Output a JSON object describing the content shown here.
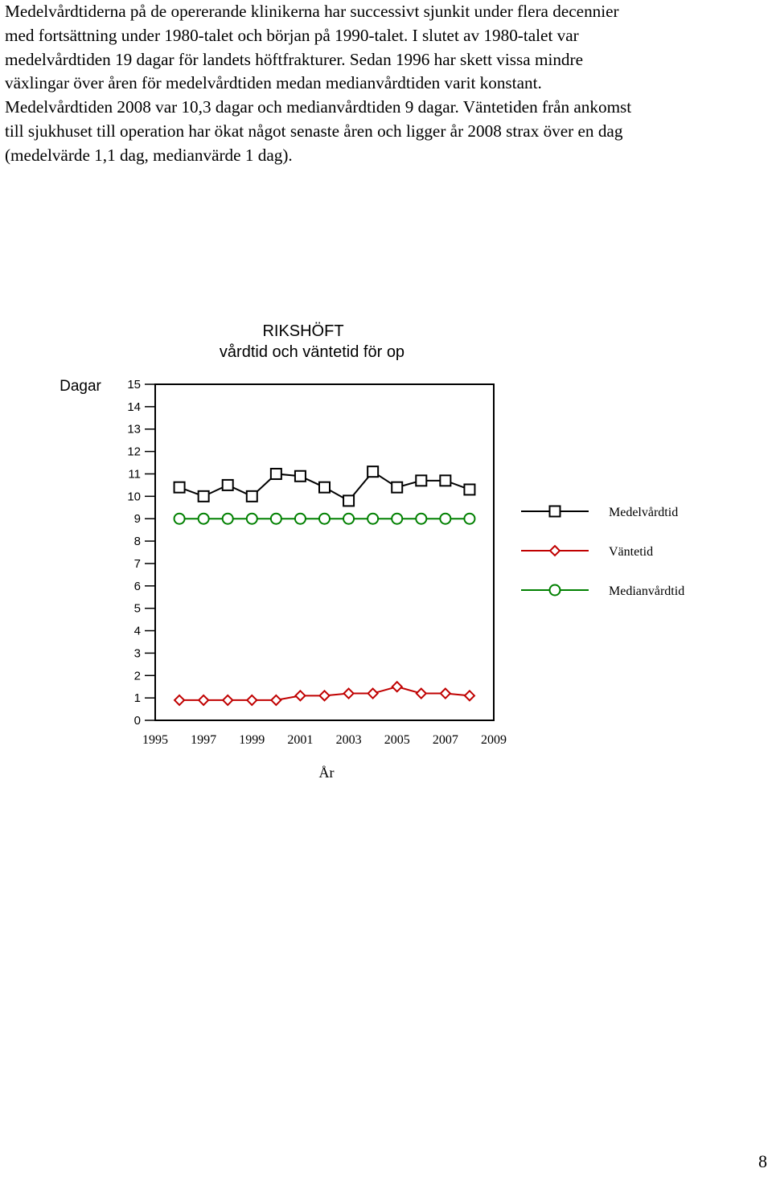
{
  "paragraph": {
    "lines": [
      "Medelvårdtiderna på de opererande klinikerna har successivt sjunkit under flera decennier",
      "med fortsättning under 1980-talet och början på 1990-talet. I slutet av 1980-talet var",
      "medelvårdtiden 19 dagar för landets höftfrakturer.  Sedan 1996 har skett vissa mindre",
      "växlingar över åren för medelvårdtiden medan medianvårdtiden varit konstant.",
      "Medelvårdtiden 2008 var 10,3 dagar och medianvårdtiden 9 dagar. Väntetiden från ankomst",
      "till sjukhuset till operation har ökat något senaste åren och ligger år 2008 strax över en dag",
      "(medelvärde 1,1 dag, medianvärde 1 dag)."
    ]
  },
  "chart_data": {
    "type": "line",
    "title": "RIKSHÖFT",
    "subtitle": "vårdtid och väntetid för op",
    "ylabel": "Dagar",
    "xlabel": "År",
    "ylim": [
      0,
      15
    ],
    "xlim": [
      1995,
      2009
    ],
    "yticks": [
      "15",
      "14",
      "13",
      "12",
      "11",
      "10",
      "9",
      "8",
      "7",
      "6",
      "5",
      "4",
      "3",
      "2",
      "1",
      "0"
    ],
    "xticks": [
      "1995",
      "1997",
      "1999",
      "2001",
      "2003",
      "2005",
      "2007",
      "2009"
    ],
    "x": [
      1996,
      1997,
      1998,
      1999,
      2000,
      2001,
      2002,
      2003,
      2004,
      2005,
      2006,
      2007,
      2008
    ],
    "series": [
      {
        "name": "Medelvårdtid",
        "marker": "square",
        "color": "#000000",
        "values": [
          10.4,
          10.0,
          10.5,
          10.0,
          11.0,
          10.9,
          10.4,
          9.8,
          11.1,
          10.4,
          10.7,
          10.7,
          10.3
        ]
      },
      {
        "name": "Väntetid",
        "marker": "diamond",
        "color": "#c00000",
        "values": [
          0.9,
          0.9,
          0.9,
          0.9,
          0.9,
          1.1,
          1.1,
          1.2,
          1.2,
          1.5,
          1.2,
          1.2,
          1.1
        ]
      },
      {
        "name": "Medianvårdtid",
        "marker": "circle",
        "color": "#008000",
        "values": [
          9,
          9,
          9,
          9,
          9,
          9,
          9,
          9,
          9,
          9,
          9,
          9,
          9
        ]
      }
    ],
    "legend_placement": "right"
  },
  "page_number": "8"
}
